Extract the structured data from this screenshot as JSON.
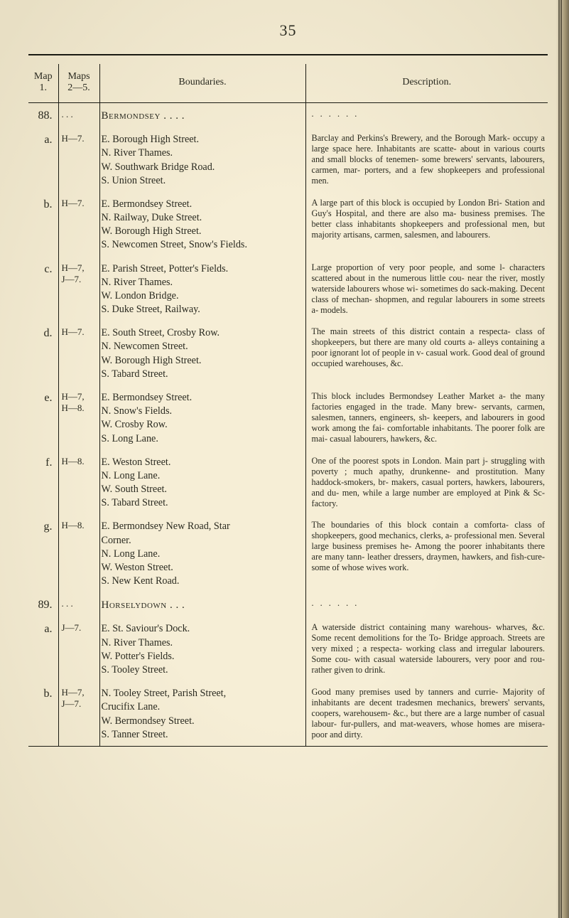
{
  "page_number": "35",
  "headers": {
    "map1": "Map\n1.",
    "maps25": "Maps\n2—5.",
    "boundaries": "Boundaries.",
    "description": "Description."
  },
  "sections": [
    {
      "sec": "88.",
      "code": ". . .",
      "bounds_heading": "Bermondsey .     .     .     .",
      "desc_heading": ".     .     .     .     .     ."
    },
    {
      "sec": "a.",
      "code": "H—7.",
      "bounds": "E. Borough High Street.\nN. River Thames.\nW. Southwark Bridge Road.\nS. Union Street.",
      "desc": "Barclay and Perkins's Brewery, and the Borough Mark‑ occupy a large space here. Inhabitants are scatte‑ about in various courts and small blocks of tenemen‑ some brewers' servants, labourers, carmen, mar‑ porters, and a few shopkeepers and professional men."
    },
    {
      "sec": "b.",
      "code": "H—7.",
      "bounds": "E. Bermondsey Street.\nN. Railway, Duke Street.\nW. Borough High Street.\nS. Newcomen Street, Snow's Fields.",
      "desc": "A large part of this block is occupied by London Bri‑ Station and Guy's Hospital, and there are also ma‑ business premises. The better class inhabitants shopkeepers and professional men, but majority artisans, carmen, salesmen, and labourers."
    },
    {
      "sec": "c.",
      "code": "H—7,\nJ—7.",
      "bounds": "E. Parish Street, Potter's Fields.\nN. River Thames.\nW. London Bridge.\nS. Duke Street, Railway.",
      "desc": "Large proportion of very poor people, and some l‑ characters scattered about in the numerous little cou‑ near the river, mostly waterside labourers whose wi‑ sometimes do sack-making. Decent class of mechan‑ shopmen, and regular labourers in some streets a‑ models."
    },
    {
      "sec": "d.",
      "code": "H—7.",
      "bounds": "E. South Street, Crosby Row.\nN. Newcomen Street.\nW. Borough High Street.\nS. Tabard Street.",
      "desc": "The main streets of this district contain a respecta‑ class of shopkeepers, but there are many old courts a‑ alleys containing a poor ignorant lot of people in v‑ casual work. Good deal of ground occupied warehouses, &c."
    },
    {
      "sec": "e.",
      "code": "H—7,\nH—8.",
      "bounds": "E. Bermondsey Street.\nN. Snow's Fields.\nW. Crosby Row.\nS. Long Lane.",
      "desc": "This block includes Bermondsey Leather Market a‑ the many factories engaged in the trade. Many brew‑ servants, carmen, salesmen, tanners, engineers, sh‑ keepers, and labourers in good work among the fai‑ comfortable inhabitants. The poorer folk are mai‑ casual labourers, hawkers, &c."
    },
    {
      "sec": "f.",
      "code": "H—8.",
      "bounds": "E. Weston Street.\nN. Long Lane.\nW. South Street.\nS. Tabard Street.",
      "desc": "One of the poorest spots in London. Main part j‑ struggling with poverty ; much apathy, drunkenne‑ and prostitution. Many haddock-smokers, br‑ makers, casual porters, hawkers, labourers, and du‑ men, while a large number are employed at Pink & Sc‑ factory."
    },
    {
      "sec": "g.",
      "code": "H—8.",
      "bounds": "E. Bermondsey New Road, Star\n     Corner.\nN. Long Lane.\nW. Weston Street.\nS. New Kent Road.",
      "desc": "The boundaries of this block contain a comforta‑ class of shopkeepers, good mechanics, clerks, a‑ professional men. Several large business premises he‑ Among the poorer inhabitants there are many tann‑ leather dressers, draymen, hawkers, and fish-cure‑ some of whose wives work."
    },
    {
      "sec": "89.",
      "code": ". . .",
      "bounds_heading": "Horselydown     .     .     .",
      "desc_heading": ".     .     .     .     .     ."
    },
    {
      "sec": "a.",
      "code": "J—7.",
      "bounds": "E. St. Saviour's Dock.\nN. River Thames.\nW. Potter's Fields.\nS. Tooley Street.",
      "desc": "A waterside district containing many warehous‑ wharves, &c. Some recent demolitions for the To‑ Bridge approach. Streets are very mixed ; a respecta‑ working class and irregular labourers. Some cou‑ with casual waterside labourers, very poor and rou‑ rather given to drink."
    },
    {
      "sec": "b.",
      "code": "H—7,\nJ—7.",
      "bounds": "N. Tooley Street, Parish Street,\n     Crucifix Lane.\nW. Bermondsey Street.\nS. Tanner Street.",
      "desc": "Good many premises used by tanners and currie‑ Majority of inhabitants are decent tradesmen mechanics, brewers' servants, coopers, warehousem‑ &c., but there are a large number of casual labour‑ fur-pullers, and mat-weavers, whose homes are misera‑ poor and dirty."
    }
  ]
}
